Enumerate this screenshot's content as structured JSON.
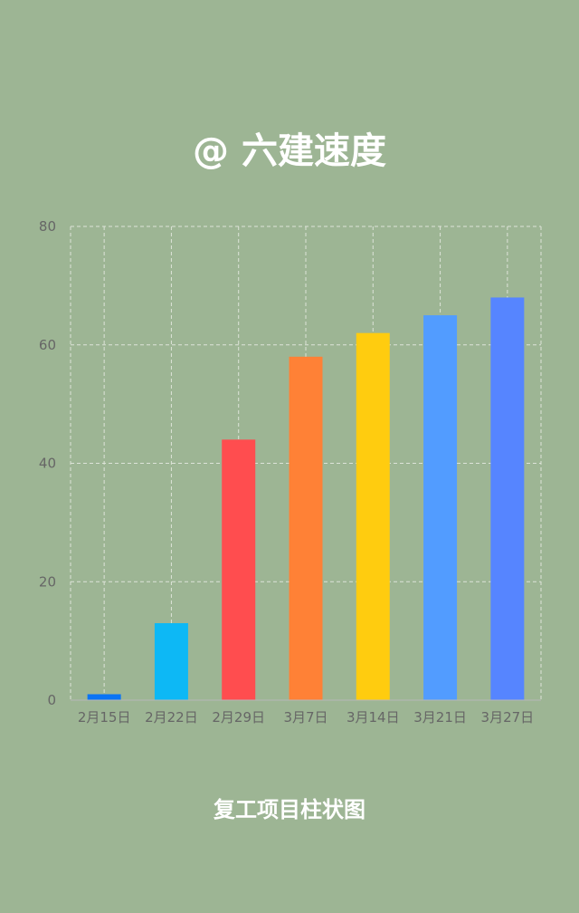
{
  "title": "@ 六建速度",
  "subtitle": "复工项目柱状图",
  "chart_data": {
    "type": "bar",
    "title": "@ 六建速度",
    "subtitle": "复工项目柱状图",
    "categories": [
      "2月15日",
      "2月22日",
      "2月29日",
      "3月7日",
      "3月14日",
      "3月21日",
      "3月27日"
    ],
    "values": [
      1,
      13,
      44,
      58,
      62,
      65,
      68
    ],
    "colors": [
      "#0a74f5",
      "#0db8f5",
      "#ff4d4f",
      "#ff8136",
      "#ffcc0f",
      "#529cff",
      "#5685ff"
    ],
    "ylim": [
      0,
      80
    ],
    "yticks": [
      0,
      20,
      40,
      60,
      80
    ],
    "grid": true,
    "grid_style": "dashed",
    "xlabel": "",
    "ylabel": ""
  }
}
